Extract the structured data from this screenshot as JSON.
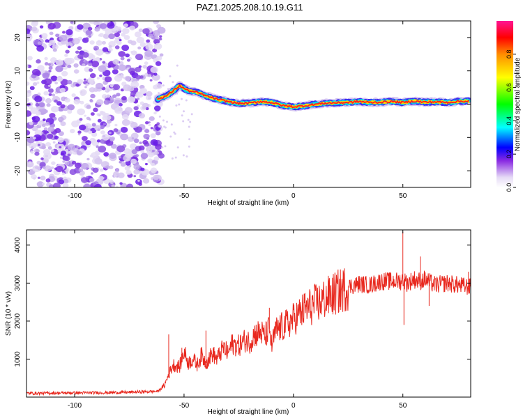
{
  "title": "PAZ1.2025.208.10.19.G11",
  "chart_data": [
    {
      "type": "heatmap",
      "xlabel": "Height of straight line (km)",
      "ylabel": "Frequency (Hz)",
      "xlim": [
        -122,
        81
      ],
      "ylim": [
        -25,
        25
      ],
      "xticks": [
        -100,
        -50,
        0,
        50
      ],
      "yticks": [
        -20,
        -10,
        0,
        10,
        20
      ],
      "colorbar": {
        "label": "Normalized spectral amplitude",
        "range": [
          0,
          1
        ],
        "ticks": [
          0.0,
          0.2,
          0.4,
          0.6,
          0.8
        ]
      },
      "noise_region_x": [
        -122,
        -62
      ],
      "ridge": {
        "x": [
          -62,
          -58,
          -55,
          -52,
          -48,
          -44,
          -40,
          -35,
          -30,
          -25,
          -20,
          -15,
          -10,
          -5,
          0,
          5,
          10,
          15,
          20,
          25,
          30,
          35,
          40,
          45,
          50,
          55,
          60,
          65,
          70,
          75,
          80
        ],
        "freq": [
          1.5,
          2.5,
          4.0,
          5.5,
          4.0,
          3.5,
          2.5,
          1.5,
          0.8,
          0.2,
          0.3,
          0.8,
          0.5,
          -0.4,
          -0.8,
          -0.5,
          0.0,
          0.3,
          0.4,
          0.5,
          0.8,
          0.5,
          0.6,
          0.8,
          0.5,
          0.9,
          0.6,
          0.7,
          0.5,
          0.8,
          0.9
        ]
      }
    },
    {
      "type": "line",
      "xlabel": "Height of straight line (km)",
      "ylabel": "SNR (10 * v/v)",
      "xlim": [
        -122,
        81
      ],
      "ylim": [
        0,
        4400
      ],
      "xticks": [
        -100,
        -50,
        0,
        50
      ],
      "yticks": [
        1000,
        2000,
        3000,
        4000
      ],
      "color": "#e8281e",
      "series": [
        {
          "name": "",
          "x": [
            -122,
            -100,
            -80,
            -62,
            -59,
            -57,
            -55,
            -52,
            -50,
            -48,
            -46,
            -44,
            -42,
            -40,
            -37,
            -35,
            -32,
            -30,
            -28,
            -25,
            -22,
            -20,
            -18,
            -15,
            -13,
            -11,
            -10,
            -8,
            -5,
            -2,
            0,
            5,
            10,
            15,
            20,
            25,
            30,
            35,
            40,
            45,
            49,
            50,
            52,
            55,
            58,
            60,
            63,
            65,
            70,
            75,
            80
          ],
          "y": [
            100,
            110,
            120,
            150,
            300,
            600,
            850,
            800,
            1200,
            900,
            1000,
            850,
            1100,
            900,
            1150,
            1000,
            1300,
            1150,
            1400,
            1350,
            1500,
            1450,
            1650,
            1700,
            1600,
            1800,
            1350,
            1750,
            1850,
            1950,
            2050,
            2300,
            2450,
            2600,
            2750,
            2900,
            2980,
            2950,
            3050,
            3050,
            3050,
            3100,
            3000,
            3100,
            3050,
            3100,
            3000,
            2950,
            3000,
            2950,
            2900
          ]
        }
      ],
      "spikes": [
        {
          "x": -57,
          "y": 1650
        },
        {
          "x": -51,
          "y": 1300
        },
        {
          "x": -40,
          "y": 1750
        },
        {
          "x": -11,
          "y": 2350
        },
        {
          "x": 50,
          "y": 4350
        },
        {
          "x": 50.5,
          "y": 1900
        },
        {
          "x": 58,
          "y": 3700
        },
        {
          "x": 62,
          "y": 2400
        },
        {
          "x": 80,
          "y": 3300
        }
      ]
    }
  ]
}
